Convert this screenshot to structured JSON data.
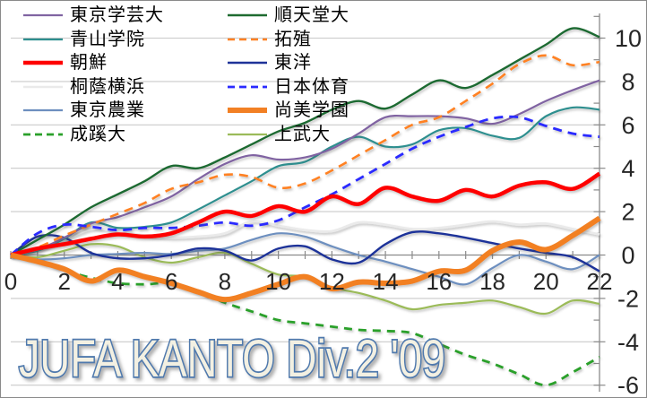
{
  "title": {
    "text": "JUFA KANTO Div.2 '09",
    "fill_color": "#f3f0e2",
    "outline_color": "#4f79ad"
  },
  "colors": {
    "axis": "#8a8a8a",
    "grid": "#c9c9c9",
    "tick_label": "#262626",
    "background": "#ffffff"
  },
  "chart_data": {
    "type": "line",
    "title": "JUFA KANTO Div.2 '09",
    "xlabel": "",
    "ylabel": "",
    "x": [
      0,
      1,
      2,
      3,
      4,
      5,
      6,
      7,
      8,
      9,
      10,
      11,
      12,
      13,
      14,
      15,
      16,
      17,
      18,
      19,
      20,
      21,
      22
    ],
    "x_ticks": [
      0,
      2,
      4,
      6,
      8,
      10,
      12,
      14,
      16,
      18,
      20,
      22
    ],
    "y_ticks": [
      10,
      8,
      6,
      4,
      2,
      0,
      -2,
      -4,
      -6
    ],
    "xlim": [
      0,
      22
    ],
    "ylim": [
      -6.6,
      11.2
    ],
    "grid": "horizontal",
    "legend_position": "top-left",
    "smoothed_lines": true,
    "series": [
      {
        "name": "桐蔭横浜",
        "color": "#EAEAEA",
        "width": 2.6,
        "dash": null,
        "values": [
          0,
          0.3,
          0.7,
          1.2,
          1.1,
          0.9,
          0.8,
          0.85,
          1.0,
          1.55,
          1.35,
          1.15,
          1.1,
          1.5,
          1.4,
          1.2,
          1.25,
          1.4,
          1.55,
          1.4,
          1.45,
          1.2,
          0.95
        ]
      },
      {
        "name": "上武大",
        "color": "#9BBB59",
        "width": 2.2,
        "dash": null,
        "values": [
          0,
          -0.1,
          0.2,
          0.5,
          0.4,
          -0.1,
          -0.35,
          -0.1,
          0.1,
          -0.4,
          -0.9,
          -1.0,
          -1.5,
          -1.75,
          -2.1,
          -2.5,
          -2.3,
          -2.2,
          -2.1,
          -2.4,
          -2.7,
          -2.1,
          -2.25
        ]
      },
      {
        "name": "東京農業",
        "color": "#6D8FBF",
        "width": 2.2,
        "dash": null,
        "values": [
          0,
          -0.2,
          -0.15,
          0.0,
          0.05,
          0.1,
          0.05,
          0.2,
          0.3,
          0.7,
          1.0,
          0.85,
          0.4,
          0.0,
          -0.3,
          -0.65,
          -1.0,
          -1.35,
          -0.6,
          0.0,
          -0.3,
          -0.65,
          0.0
        ]
      },
      {
        "name": "東洋",
        "color": "#1F3399",
        "width": 2.4,
        "dash": null,
        "values": [
          0,
          0.85,
          0.8,
          0.1,
          -0.15,
          -0.15,
          0.0,
          0.3,
          0.2,
          -0.25,
          0.3,
          0.4,
          -0.2,
          -0.35,
          0.5,
          1.05,
          1.0,
          0.8,
          0.55,
          0.3,
          0.1,
          -0.1,
          -0.75
        ]
      },
      {
        "name": "青山学院",
        "color": "#2E8F8F",
        "width": 2.2,
        "dash": null,
        "values": [
          0,
          0.2,
          0.75,
          1.5,
          1.25,
          1.3,
          1.5,
          2.1,
          2.75,
          3.4,
          4.1,
          4.3,
          5.0,
          5.45,
          5.0,
          5.1,
          5.75,
          5.85,
          5.5,
          5.4,
          6.4,
          6.8,
          6.7
        ]
      },
      {
        "name": "東京学芸大",
        "color": "#8064A2",
        "width": 2.2,
        "dash": null,
        "values": [
          0,
          0.25,
          0.8,
          1.45,
          1.75,
          2.2,
          2.7,
          3.5,
          4.2,
          4.6,
          4.4,
          4.5,
          4.9,
          5.6,
          6.35,
          6.4,
          6.4,
          6.3,
          6.05,
          6.5,
          7.1,
          7.6,
          8.05
        ]
      },
      {
        "name": "順天堂大",
        "color": "#1E6B30",
        "width": 2.4,
        "dash": null,
        "values": [
          0,
          0.7,
          1.4,
          2.2,
          2.8,
          3.4,
          4.1,
          4.0,
          4.5,
          5.1,
          5.7,
          6.1,
          6.7,
          7.1,
          6.75,
          7.4,
          8.05,
          7.7,
          8.3,
          9.0,
          9.7,
          10.45,
          10.05
        ]
      },
      {
        "name": "拓殖",
        "color": "#FF8124",
        "width": 2.6,
        "dash": [
          10,
          7
        ],
        "values": [
          0,
          0.35,
          0.9,
          1.4,
          1.9,
          2.4,
          3.05,
          3.35,
          3.7,
          3.6,
          3.1,
          3.3,
          3.9,
          4.6,
          5.3,
          6.0,
          6.35,
          7.1,
          7.9,
          8.8,
          9.2,
          8.75,
          8.9
        ]
      },
      {
        "name": "成蹊大",
        "color": "#2AA02A",
        "width": 2.8,
        "dash": [
          9,
          7
        ],
        "values": [
          0,
          -0.25,
          -0.7,
          -1.05,
          -1.3,
          -1.35,
          -1.3,
          -1.7,
          -2.2,
          -2.6,
          -3.0,
          -3.15,
          -3.3,
          -3.45,
          -3.5,
          -3.6,
          -4.1,
          -4.6,
          -5.0,
          -5.5,
          -6.0,
          -5.4,
          -4.7
        ]
      },
      {
        "name": "日本体育",
        "color": "#2B2BFF",
        "width": 2.8,
        "dash": [
          10,
          7
        ],
        "values": [
          0,
          1.0,
          1.4,
          1.3,
          1.15,
          1.25,
          1.25,
          1.35,
          1.5,
          1.35,
          1.6,
          2.2,
          2.8,
          3.5,
          4.2,
          4.9,
          5.45,
          5.9,
          6.3,
          6.35,
          5.95,
          5.6,
          5.45
        ]
      },
      {
        "name": "朝鮮",
        "color": "#FE0000",
        "width": 4.5,
        "dash": null,
        "values": [
          0,
          0.3,
          0.5,
          0.75,
          0.95,
          0.85,
          1.0,
          1.5,
          2.0,
          1.8,
          2.25,
          2.0,
          2.7,
          2.35,
          3.1,
          2.7,
          2.5,
          3.0,
          2.7,
          3.2,
          3.35,
          3.05,
          3.75
        ]
      },
      {
        "name": "尚美学園",
        "color": "#F28024",
        "width": 6,
        "dash": null,
        "values": [
          0,
          -0.3,
          -0.65,
          -1.2,
          -0.7,
          -1.0,
          -1.3,
          -1.7,
          -2.05,
          -1.75,
          -1.35,
          -1.0,
          -1.55,
          -1.25,
          -1.3,
          -1.2,
          -0.75,
          -0.7,
          0.2,
          0.6,
          0.25,
          0.9,
          1.7
        ]
      }
    ],
    "legend_grid": [
      [
        5,
        6
      ],
      [
        4,
        7
      ],
      [
        10,
        3
      ],
      [
        0,
        9
      ],
      [
        2,
        11
      ],
      [
        8,
        1
      ]
    ]
  }
}
